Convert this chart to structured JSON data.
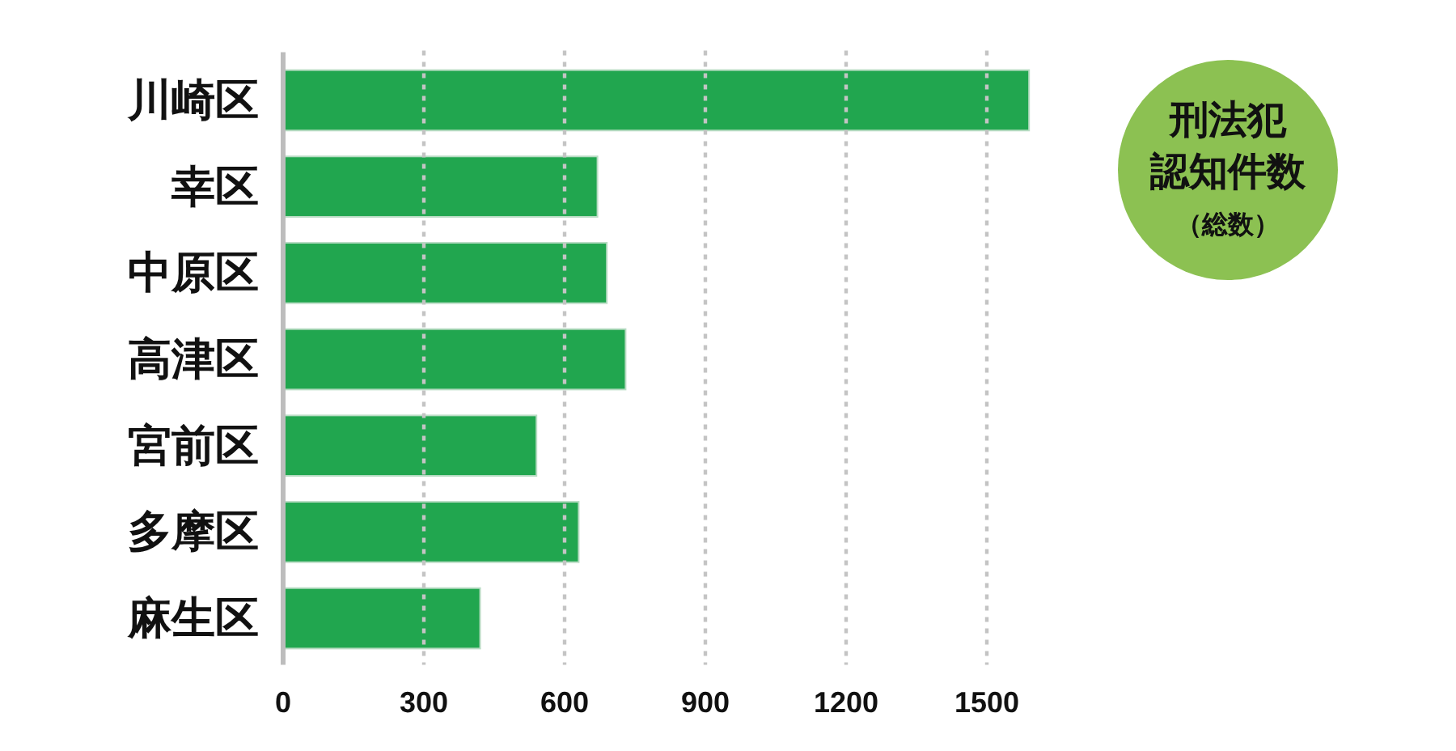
{
  "chart_data": {
    "type": "bar",
    "orientation": "horizontal",
    "title": "刑法犯認知件数",
    "subtitle": "（総数）",
    "categories": [
      "川崎区",
      "幸区",
      "中原区",
      "高津区",
      "宮前区",
      "多摩区",
      "麻生区"
    ],
    "values": [
      1590,
      670,
      690,
      730,
      540,
      630,
      420
    ],
    "color": "#21a64f",
    "xlim": [
      0,
      1600
    ],
    "xticks": [
      0,
      300,
      600,
      900,
      1200,
      1500
    ],
    "grid": "x"
  }
}
